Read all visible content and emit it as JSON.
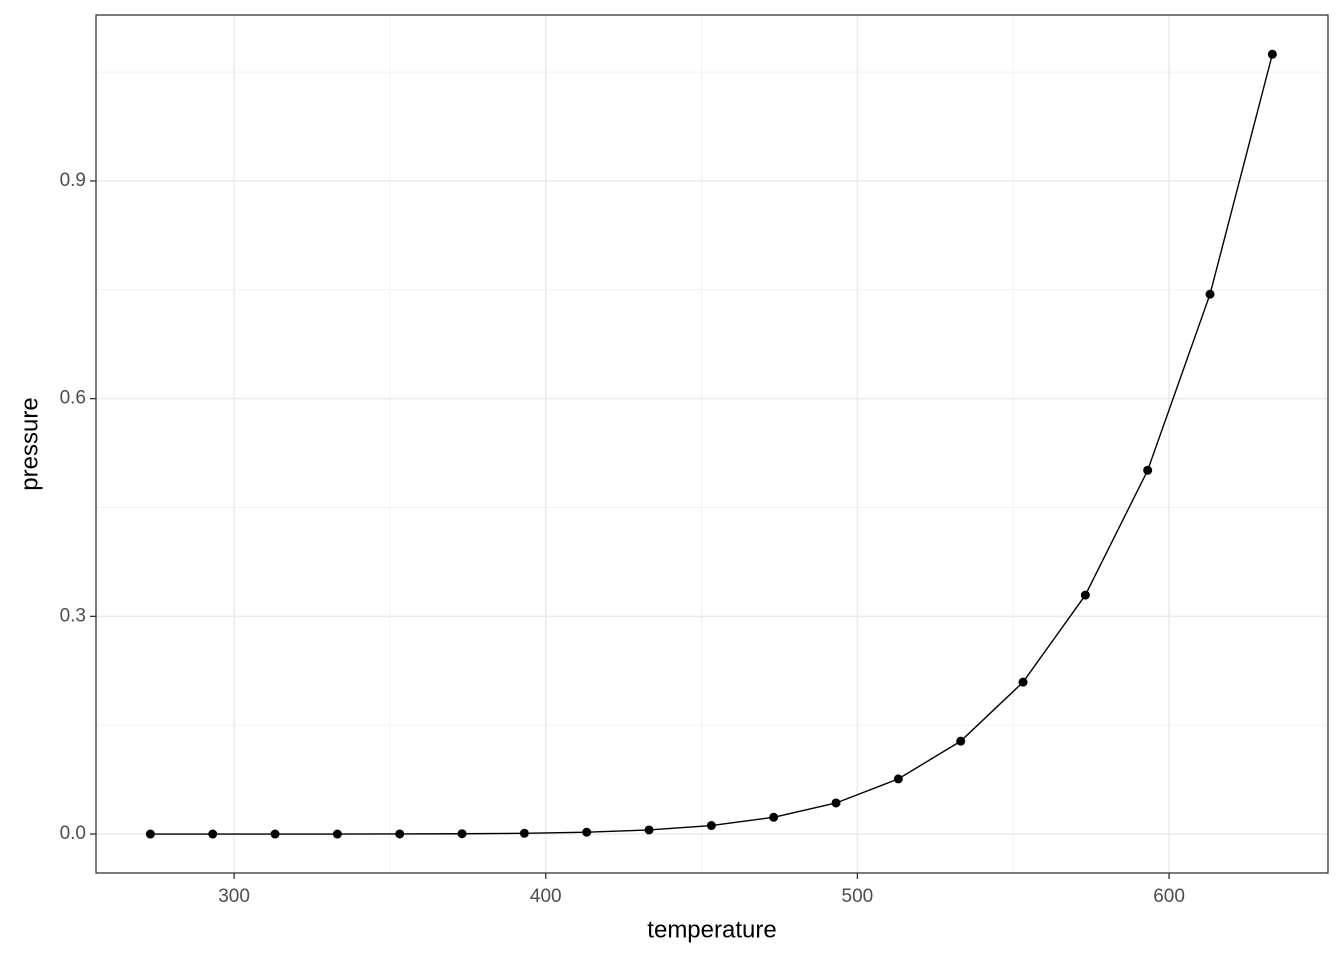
{
  "chart_data": {
    "type": "line",
    "x_label": "temperature",
    "y_label": "pressure",
    "x": [
      273.15,
      293.15,
      313.15,
      333.15,
      353.15,
      373.15,
      393.15,
      413.15,
      433.15,
      453.15,
      473.15,
      493.15,
      513.15,
      533.15,
      553.15,
      573.15,
      593.15,
      613.15,
      633.15
    ],
    "series": [
      {
        "color": "#000000",
        "values": [
          0.0,
          0.0,
          0.0,
          0.0,
          0.0001,
          0.0004,
          0.001,
          0.0025,
          0.0056,
          0.0117,
          0.0231,
          0.0428,
          0.076,
          0.128,
          0.2093,
          0.3293,
          0.5013,
          0.7439,
          1.0746
        ]
      }
    ],
    "xlim": [
      255.7,
      651.0
    ],
    "ylim": [
      -0.0537,
      1.1287
    ],
    "xticks": [
      300,
      400,
      500,
      600
    ],
    "yticks": [
      {
        "value": 0,
        "label": "0.0"
      },
      0.3,
      0.6,
      0.9
    ],
    "x_minor_ticks": [
      350,
      450,
      550,
      650
    ],
    "y_minor_ticks": [
      0.15,
      0.45,
      0.75,
      1.05
    ],
    "grid": true
  }
}
